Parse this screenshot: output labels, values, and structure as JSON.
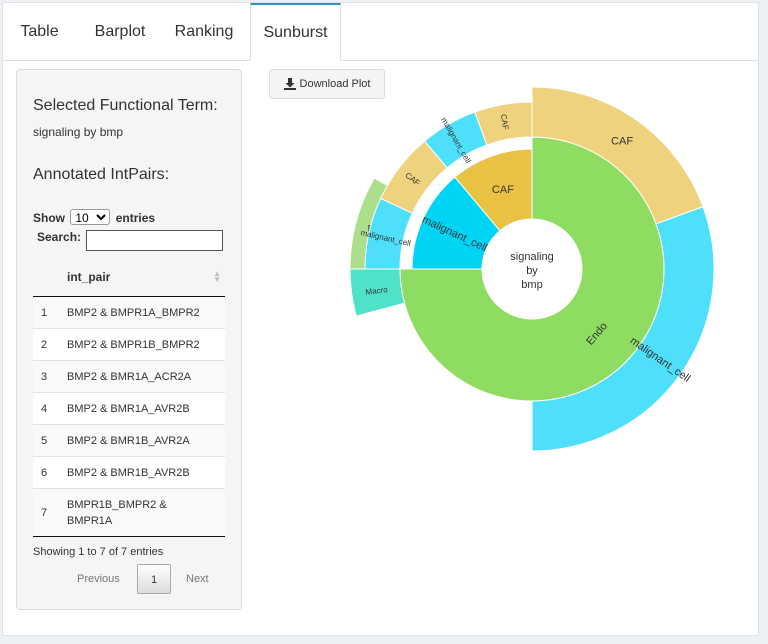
{
  "tabs": [
    {
      "label": "Table"
    },
    {
      "label": "Barplot"
    },
    {
      "label": "Ranking"
    },
    {
      "label": "Sunburst"
    }
  ],
  "active_tab": "Sunburst",
  "sidebar": {
    "selected_heading": "Selected Functional Term:",
    "selected_value": "signaling by bmp",
    "annotated_heading": "Annotated IntPairs:",
    "show_label": "Show",
    "show_value": "10",
    "entries_label": "entries",
    "search_label": "Search:",
    "search_value": ""
  },
  "table": {
    "column": "int_pair",
    "rows": [
      {
        "n": "1",
        "pair": "BMP2 & BMPR1A_BMPR2"
      },
      {
        "n": "2",
        "pair": "BMP2 & BMPR1B_BMPR2"
      },
      {
        "n": "3",
        "pair": "BMP2 & BMR1A_ACR2A"
      },
      {
        "n": "4",
        "pair": "BMP2 & BMR1A_AVR2B"
      },
      {
        "n": "5",
        "pair": "BMP2 & BMR1B_AVR2A"
      },
      {
        "n": "6",
        "pair": "BMP2 & BMR1B_AVR2B"
      },
      {
        "n": "7",
        "pair": "BMPR1B_BMPR2 & BMPR1A"
      }
    ],
    "info": "Showing 1 to 7 of 7 entries",
    "prev": "Previous",
    "page": "1",
    "next": "Next"
  },
  "download_button": "Download Plot",
  "download_icon": "download-icon",
  "chart_data": {
    "type": "sunburst",
    "center_label": [
      "signaling",
      "by",
      "bmp"
    ],
    "rings": [
      [
        {
          "label": "Endo",
          "color": "#8fdc62",
          "start_deg": 0,
          "end_deg": 270
        },
        {
          "label": "malignant_cell",
          "color": "#00d4f5",
          "start_deg": 270,
          "end_deg": 320
        },
        {
          "label": "CAF",
          "color": "#e9c244",
          "start_deg": 320,
          "end_deg": 360
        }
      ],
      [
        {
          "label": "CAF",
          "color": "#efd27e",
          "start_deg": 0,
          "end_deg": 70
        },
        {
          "label": "malignant_cell",
          "color": "#4ee0fa",
          "start_deg": 70,
          "end_deg": 180
        },
        {
          "label": "Endo",
          "color": "#acdf8c",
          "start_deg": 270,
          "end_deg": 300
        },
        {
          "label": "Macro",
          "color": "#4ee3c9",
          "start_deg": 255,
          "end_deg": 270
        },
        {
          "label": "malignant_cell",
          "color": "#4ee0fa",
          "start_deg": 270,
          "end_deg": 295
        },
        {
          "label": "CAF",
          "color": "#efd27e",
          "start_deg": 295,
          "end_deg": 320
        },
        {
          "label": "malignant_cell",
          "color": "#4ee0fa",
          "start_deg": 320,
          "end_deg": 340
        },
        {
          "label": "CAF",
          "color": "#efd27e",
          "start_deg": 340,
          "end_deg": 360
        }
      ]
    ]
  }
}
